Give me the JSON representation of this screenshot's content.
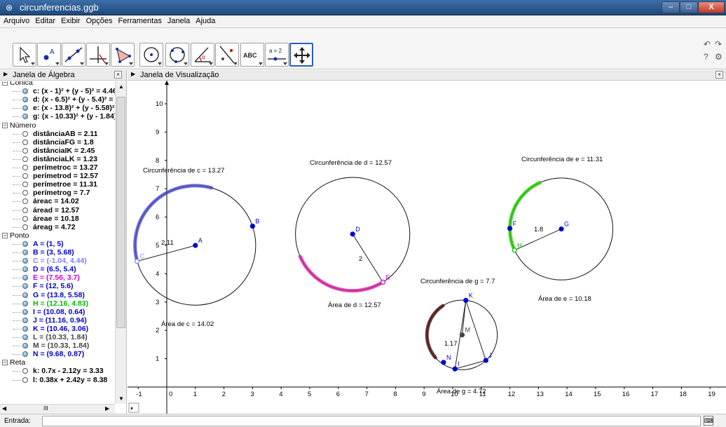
{
  "window": {
    "title": "circunferencias.ggb",
    "min_label": "–",
    "max_label": "□",
    "close_label": "X"
  },
  "menu": [
    "Arquivo",
    "Editar",
    "Exibir",
    "Opções",
    "Ferramentas",
    "Janela",
    "Ajuda"
  ],
  "toolbar": {
    "tools": [
      {
        "name": "move-tool",
        "icon": "arrow-icon"
      },
      {
        "name": "point-tool",
        "icon": "point-icon",
        "label": "A"
      },
      {
        "name": "line-tool",
        "icon": "line-icon"
      },
      {
        "name": "perpendicular-tool",
        "icon": "perpendicular-icon"
      },
      {
        "name": "polygon-tool",
        "icon": "polygon-icon"
      },
      {
        "name": "circle-center-point-tool",
        "icon": "circle-icon"
      },
      {
        "name": "circle-three-points-tool",
        "icon": "circle-points-icon"
      },
      {
        "name": "angle-tool",
        "icon": "angle-icon",
        "label": "α"
      },
      {
        "name": "reflect-tool",
        "icon": "reflect-icon"
      },
      {
        "name": "text-tool",
        "icon": "text-icon",
        "label": "ABC"
      },
      {
        "name": "slider-tool",
        "icon": "slider-icon",
        "label": "a = 2"
      },
      {
        "name": "move-graphics-tool",
        "icon": "move-view-icon",
        "selected": true
      }
    ]
  },
  "algebra": {
    "title": "Janela de Álgebra",
    "close": "×",
    "top_cut": "Cônica",
    "groups": [
      {
        "label": "Cônica",
        "collapse": "−",
        "items": [
          {
            "text": "c: (x - 1)² + (y - 5)² = 4.46",
            "vis": true,
            "color": "#000000"
          },
          {
            "text": "d: (x - 6.5)² + (y - 5.4)² = 4",
            "vis": true,
            "color": "#000000"
          },
          {
            "text": "e: (x - 13.8)² + (y - 5.58)² ",
            "vis": true,
            "color": "#000000"
          },
          {
            "text": "g: (x - 10.33)² + (y - 1.84)",
            "vis": true,
            "color": "#000000"
          }
        ]
      },
      {
        "label": "Número",
        "collapse": "−",
        "items": [
          {
            "text": "distânciaAB = 2.11",
            "vis": false,
            "color": "#000000"
          },
          {
            "text": "distânciaFG = 1.8",
            "vis": false,
            "color": "#000000"
          },
          {
            "text": "distânciaIK = 2.45",
            "vis": false,
            "color": "#000000"
          },
          {
            "text": "distânciaLK = 1.23",
            "vis": false,
            "color": "#000000"
          },
          {
            "text": "perímetroc = 13.27",
            "vis": false,
            "color": "#000000"
          },
          {
            "text": "perímetrod = 12.57",
            "vis": false,
            "color": "#000000"
          },
          {
            "text": "perímetroe = 11.31",
            "vis": false,
            "color": "#000000"
          },
          {
            "text": "perímetrog = 7.7",
            "vis": false,
            "color": "#000000"
          },
          {
            "text": "áreac = 14.02",
            "vis": false,
            "color": "#000000"
          },
          {
            "text": "áread = 12.57",
            "vis": false,
            "color": "#000000"
          },
          {
            "text": "áreae = 10.18",
            "vis": false,
            "color": "#000000"
          },
          {
            "text": "áreag = 4.72",
            "vis": false,
            "color": "#000000"
          }
        ]
      },
      {
        "label": "Ponto",
        "collapse": "−",
        "items": [
          {
            "text": "A = (1, 5)",
            "vis": true,
            "color": "#0000cc"
          },
          {
            "text": "B = (3, 5.68)",
            "vis": true,
            "color": "#0000cc"
          },
          {
            "text": "C = (-1.04, 4.44)",
            "vis": true,
            "color": "#7f7fff"
          },
          {
            "text": "D = (6.5, 5.4)",
            "vis": true,
            "color": "#0000cc"
          },
          {
            "text": "E = (7.56, 3.7)",
            "vis": true,
            "color": "#cc00cc"
          },
          {
            "text": "F = (12, 5.6)",
            "vis": true,
            "color": "#0000cc"
          },
          {
            "text": "G = (13.8, 5.58)",
            "vis": true,
            "color": "#0000cc"
          },
          {
            "text": "H = (12.16, 4.83)",
            "vis": true,
            "color": "#00bb00"
          },
          {
            "text": "I = (10.08, 0.64)",
            "vis": true,
            "color": "#0000cc"
          },
          {
            "text": "J = (11.16, 0.94)",
            "vis": true,
            "color": "#0000cc"
          },
          {
            "text": "K = (10.46, 3.06)",
            "vis": true,
            "color": "#0000cc"
          },
          {
            "text": "L = (10.33, 1.84)",
            "vis": true,
            "color": "#444444"
          },
          {
            "text": "M = (10.33, 1.84)",
            "vis": true,
            "color": "#444444"
          },
          {
            "text": "N = (9.68, 0.87)",
            "vis": true,
            "color": "#0000cc"
          }
        ]
      },
      {
        "label": "Reta",
        "collapse": "−",
        "items": [
          {
            "text": "k: 0.7x - 2.12y = 3.33",
            "vis": false,
            "color": "#000000"
          },
          {
            "text": "l: 0.38x + 2.42y = 8.38",
            "vis": false,
            "color": "#000000"
          }
        ]
      }
    ],
    "hscroll_label": "III"
  },
  "graphics": {
    "title": "Janela de Visualização",
    "close": "×",
    "toggle_label": "⏸",
    "x_ticks": [
      "-1",
      "0",
      "1",
      "2",
      "3",
      "4",
      "5",
      "6",
      "7",
      "8",
      "9",
      "10",
      "11",
      "12",
      "13",
      "14",
      "15",
      "16",
      "17",
      "18",
      "19"
    ],
    "y_ticks": [
      "1",
      "2",
      "3",
      "4",
      "5",
      "6",
      "7",
      "8",
      "9",
      "10"
    ],
    "origin_label": "0",
    "texts": {
      "circ_c": "Circunferência de c = 13.27",
      "circ_d": "Circunferência de d = 12.57",
      "circ_e": "Circunferência de e = 11.31",
      "circ_g": "Circunferência de g = 7.7",
      "area_c": "Área de c = 14.02",
      "area_d": "Área de d = 12.57",
      "area_e": "Área de e = 10.18",
      "area_g": "Área de g = 4.72",
      "seg_c": "2.11",
      "seg_d": "2",
      "seg_e": "1.8",
      "seg_g": "1.17"
    },
    "points": [
      {
        "label": "A",
        "x": 1,
        "y": 5,
        "color": "#0000cc"
      },
      {
        "label": "B",
        "x": 3,
        "y": 5.68,
        "color": "#0000cc"
      },
      {
        "label": "C",
        "x": -1.04,
        "y": 4.44,
        "color": "#7f7fff"
      },
      {
        "label": "D",
        "x": 6.5,
        "y": 5.4,
        "color": "#0000cc"
      },
      {
        "label": "E",
        "x": 7.56,
        "y": 3.7,
        "color": "#cc00cc"
      },
      {
        "label": "F",
        "x": 12,
        "y": 5.6,
        "color": "#0000cc"
      },
      {
        "label": "G",
        "x": 13.8,
        "y": 5.58,
        "color": "#0000cc"
      },
      {
        "label": "H",
        "x": 12.16,
        "y": 4.83,
        "color": "#00bb00"
      },
      {
        "label": "I",
        "x": 10.08,
        "y": 0.64,
        "color": "#0000cc"
      },
      {
        "label": "J",
        "x": 11.16,
        "y": 0.94,
        "color": "#0000cc"
      },
      {
        "label": "K",
        "x": 10.46,
        "y": 3.06,
        "color": "#0000cc"
      },
      {
        "label": "M",
        "x": 10.33,
        "y": 1.84,
        "color": "#444444"
      },
      {
        "label": "N",
        "x": 9.68,
        "y": 0.87,
        "color": "#0000cc"
      }
    ],
    "accent_colors": {
      "c": "#4a4acc",
      "d": "#d61fa0",
      "e": "#22cc00",
      "g": "#4a0a0a"
    }
  },
  "input": {
    "label": "Entrada:",
    "value": "",
    "keyboard": "⌨"
  }
}
